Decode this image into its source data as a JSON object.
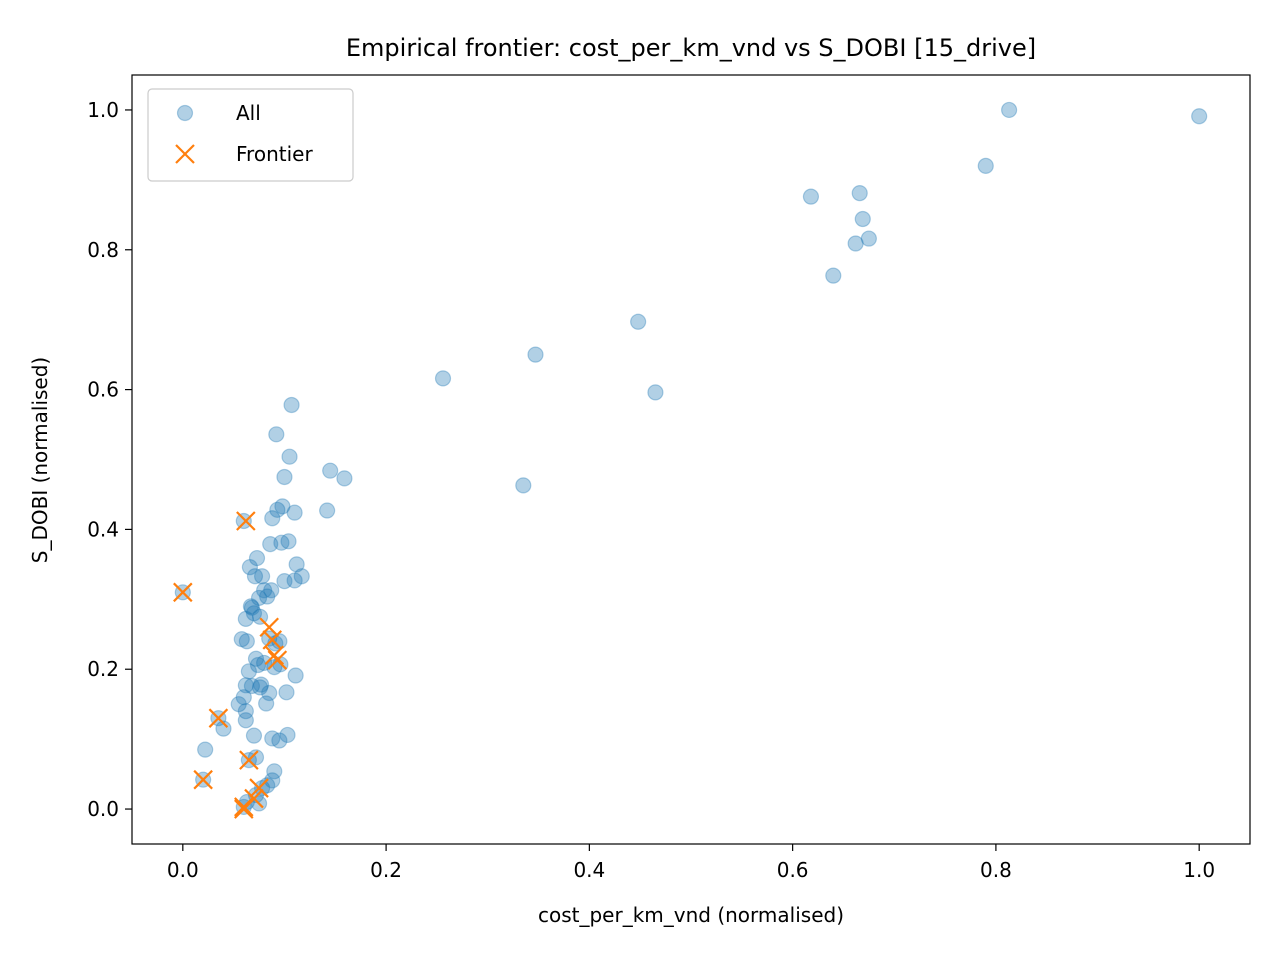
{
  "chart_data": {
    "type": "scatter",
    "title": "Empirical frontier: cost_per_km_vnd vs S_DOBI [15_drive]",
    "xlabel": "cost_per_km_vnd (normalised)",
    "ylabel": "S_DOBI (normalised)",
    "xlim": [
      -0.05,
      1.05
    ],
    "ylim": [
      -0.05,
      1.05
    ],
    "xticks": [
      "0.0",
      "0.2",
      "0.4",
      "0.6",
      "0.8",
      "1.0"
    ],
    "yticks": [
      "0.0",
      "0.2",
      "0.4",
      "0.6",
      "0.8",
      "1.0"
    ],
    "grid": false,
    "legend_position": "upper-left",
    "series": [
      {
        "name": "All",
        "marker": "circle",
        "color": "#1f77b4",
        "opacity": 0.35,
        "x": [
          0.0,
          0.02,
          0.022,
          0.035,
          0.04,
          0.055,
          0.058,
          0.06,
          0.06,
          0.06,
          0.062,
          0.062,
          0.062,
          0.062,
          0.063,
          0.065,
          0.065,
          0.066,
          0.067,
          0.068,
          0.068,
          0.07,
          0.07,
          0.071,
          0.072,
          0.072,
          0.073,
          0.074,
          0.075,
          0.075,
          0.076,
          0.076,
          0.077,
          0.078,
          0.08,
          0.08,
          0.082,
          0.083,
          0.083,
          0.085,
          0.085,
          0.086,
          0.087,
          0.088,
          0.088,
          0.088,
          0.09,
          0.09,
          0.091,
          0.092,
          0.093,
          0.095,
          0.095,
          0.096,
          0.097,
          0.098,
          0.1,
          0.1,
          0.102,
          0.103,
          0.104,
          0.105,
          0.107,
          0.11,
          0.11,
          0.111,
          0.112,
          0.117,
          0.142,
          0.145,
          0.159,
          0.256,
          0.335,
          0.347,
          0.448,
          0.465,
          0.618,
          0.64,
          0.662,
          0.666,
          0.669,
          0.675,
          0.79,
          0.813,
          1.0,
          0.063,
          0.072,
          0.078
        ],
        "y": [
          0.31,
          0.042,
          0.085,
          0.13,
          0.115,
          0.15,
          0.243,
          0.003,
          0.16,
          0.412,
          0.272,
          0.177,
          0.14,
          0.127,
          0.24,
          0.07,
          0.197,
          0.346,
          0.29,
          0.176,
          0.288,
          0.28,
          0.105,
          0.333,
          0.215,
          0.074,
          0.359,
          0.206,
          0.008,
          0.302,
          0.174,
          0.275,
          0.178,
          0.333,
          0.313,
          0.209,
          0.151,
          0.304,
          0.034,
          0.244,
          0.166,
          0.379,
          0.313,
          0.101,
          0.416,
          0.041,
          0.054,
          0.203,
          0.237,
          0.536,
          0.428,
          0.098,
          0.24,
          0.207,
          0.381,
          0.433,
          0.475,
          0.326,
          0.167,
          0.106,
          0.383,
          0.504,
          0.578,
          0.424,
          0.327,
          0.191,
          0.35,
          0.333,
          0.427,
          0.484,
          0.473,
          0.616,
          0.463,
          0.65,
          0.697,
          0.596,
          0.876,
          0.763,
          0.809,
          0.881,
          0.844,
          0.816,
          0.92,
          1.0,
          0.991,
          0.01,
          0.02,
          0.03
        ]
      },
      {
        "name": "Frontier",
        "marker": "x",
        "color": "#ff7f0e",
        "x": [
          0.0,
          0.02,
          0.035,
          0.06,
          0.062,
          0.065,
          0.07,
          0.075,
          0.085,
          0.088,
          0.09,
          0.093,
          0.06
        ],
        "y": [
          0.31,
          0.042,
          0.13,
          0.003,
          0.412,
          0.07,
          0.015,
          0.03,
          0.26,
          0.242,
          0.22,
          0.213,
          0.0
        ]
      }
    ]
  }
}
